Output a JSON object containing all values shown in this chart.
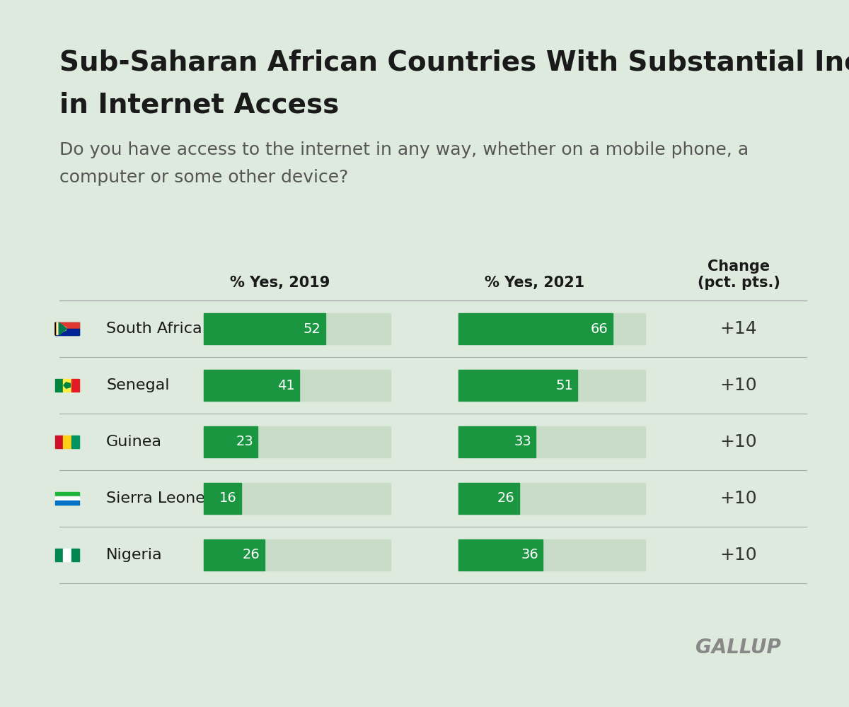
{
  "title_line1": "Sub-Saharan African Countries With Substantial Increases",
  "title_line2": "in Internet Access",
  "subtitle": "Do you have access to the internet in any way, whether on a mobile phone, a\ncomputer or some other device?",
  "col_header_2019": "% Yes, 2019",
  "col_header_2021": "% Yes, 2021",
  "col_header_change": "Change\n(pct. pts.)",
  "background_color": "#deeadd",
  "bar_bg_color": "#c8dcc7",
  "bar_color": "#1a9641",
  "bar_text_color": "#ffffff",
  "change_text_color": "#333333",
  "countries": [
    "South Africa",
    "Senegal",
    "Guinea",
    "Sierra Leone",
    "Nigeria"
  ],
  "values_2019": [
    52,
    41,
    23,
    16,
    26
  ],
  "values_2021": [
    66,
    51,
    33,
    26,
    36
  ],
  "changes": [
    "+14",
    "+10",
    "+10",
    "+10",
    "+10"
  ],
  "bar_max": 80,
  "title_fontsize": 28,
  "subtitle_fontsize": 18,
  "header_fontsize": 15,
  "country_fontsize": 16,
  "bar_value_fontsize": 14,
  "change_fontsize": 18,
  "gallup_text": "GALLUP",
  "gallup_fontsize": 20
}
